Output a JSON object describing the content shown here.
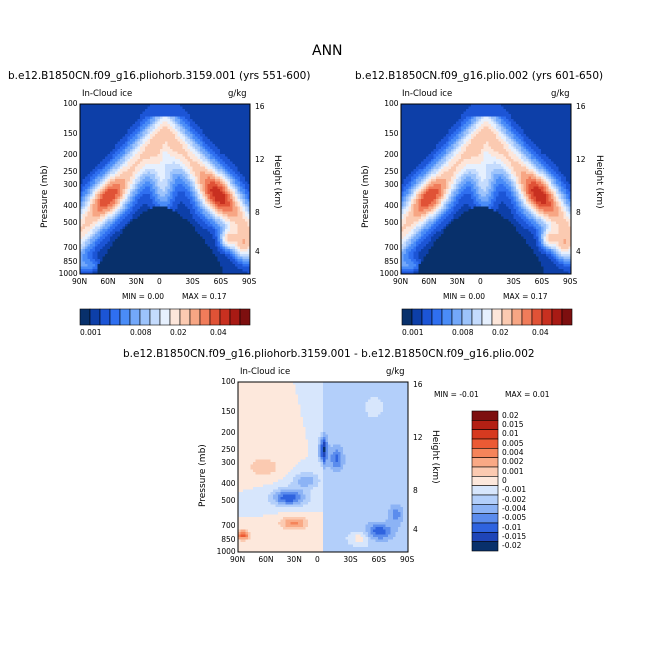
{
  "chart_data": [
    {
      "type": "heatmap",
      "title": "b.e12.B1850CN.f09_g16.pliohorb.3159.001 (yrs 551-600)",
      "field_label": "In-Cloud ice",
      "units": "g/kg",
      "ylabel": "Pressure (mb)",
      "ylabel_right": "Height (km)",
      "x_ticks": [
        "90N",
        "60N",
        "30N",
        "0",
        "30S",
        "60S",
        "90S"
      ],
      "y_ticks": [
        "100",
        "150",
        "200",
        "250",
        "300",
        "400",
        "500",
        "700",
        "850",
        "1000"
      ],
      "y_right_ticks": [
        "16",
        "12",
        "8",
        "4"
      ],
      "min_text": "MIN =   0.00",
      "max_text": "MAX =   0.17",
      "colorbar_labels": [
        "0.001",
        "0.008",
        "0.02",
        "0.04"
      ]
    },
    {
      "type": "heatmap",
      "title": "b.e12.B1850CN.f09_g16.plio.002 (yrs 601-650)",
      "field_label": "In-Cloud ice",
      "units": "g/kg",
      "ylabel": "Pressure (mb)",
      "ylabel_right": "Height (km)",
      "x_ticks": [
        "90N",
        "60N",
        "30N",
        "0",
        "30S",
        "60S",
        "90S"
      ],
      "y_ticks": [
        "100",
        "150",
        "200",
        "250",
        "300",
        "400",
        "500",
        "700",
        "850",
        "1000"
      ],
      "y_right_ticks": [
        "16",
        "12",
        "8",
        "4"
      ],
      "min_text": "MIN =   0.00",
      "max_text": "MAX =   0.17",
      "colorbar_labels": [
        "0.001",
        "0.008",
        "0.02",
        "0.04"
      ]
    },
    {
      "type": "heatmap",
      "title": "b.e12.B1850CN.f09_g16.pliohorb.3159.001  -  b.e12.B1850CN.f09_g16.plio.002",
      "field_label": "In-Cloud ice",
      "units": "g/kg",
      "ylabel": "Pressure (mb)",
      "ylabel_right": "Height (km)",
      "x_ticks": [
        "90N",
        "60N",
        "30N",
        "0",
        "30S",
        "60S",
        "90S"
      ],
      "y_ticks": [
        "100",
        "150",
        "200",
        "250",
        "300",
        "400",
        "500",
        "700",
        "850",
        "1000"
      ],
      "y_right_ticks": [
        "16",
        "12",
        "8",
        "4"
      ],
      "min_text": "MIN =  -0.01",
      "max_text": "MAX =   0.01",
      "colorbar_labels": [
        "0.02",
        "0.015",
        "0.01",
        "0.005",
        "0.004",
        "0.002",
        "0.001",
        "0",
        "-0.001",
        "-0.002",
        "-0.004",
        "-0.005",
        "-0.01",
        "-0.015",
        "-0.02"
      ]
    }
  ],
  "page": {
    "title": "ANN"
  },
  "colors": {
    "seq_scale": [
      "#08306b",
      "#0d3fa8",
      "#1c55d6",
      "#2f6ff0",
      "#4a8cf7",
      "#73a8fa",
      "#9cc3fb",
      "#c4dbfd",
      "#e6f0fe",
      "#fde6da",
      "#fbcab1",
      "#f7a684",
      "#f07c5a",
      "#e05236",
      "#c83020",
      "#a81a14",
      "#7d0f0f"
    ],
    "diff_scale": [
      "#7d0f0f",
      "#b32014",
      "#d63a20",
      "#ec5a34",
      "#f5845a",
      "#f9a985",
      "#fbcab1",
      "#fde8dc",
      "#d7e6fc",
      "#b3cffa",
      "#8cb3f5",
      "#5b8ced",
      "#2f63df",
      "#1f45b8",
      "#08306b"
    ]
  }
}
